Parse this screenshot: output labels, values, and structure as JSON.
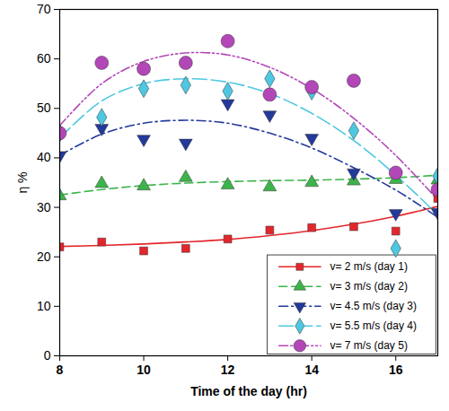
{
  "chart_data": {
    "type": "scatter",
    "x_label": "Time of the day (hr)",
    "y_label": "η %",
    "x": [
      8,
      9,
      10,
      11,
      12,
      13,
      14,
      15,
      16,
      17
    ],
    "xlim": [
      8,
      17
    ],
    "xticks": [
      8,
      10,
      12,
      14,
      16
    ],
    "ylim": [
      0,
      70
    ],
    "yticks": [
      0,
      10,
      20,
      30,
      40,
      50,
      60,
      70
    ],
    "grid": false,
    "legend": "bottom right",
    "series": [
      {
        "name": "v= 2 m/s (day 1)",
        "color": "#e3262b",
        "marker": "square",
        "line_style": "solid",
        "values": [
          22,
          23,
          21.2,
          21.7,
          23.6,
          25.4,
          25.9,
          26.1,
          25.2,
          31.8
        ],
        "fit": [
          22.1,
          22.3,
          22.6,
          23,
          23.5,
          24.3,
          25.3,
          26.6,
          28.2,
          30.2
        ]
      },
      {
        "name": "v= 3 m/s (day 2)",
        "color": "#3cb44b",
        "marker": "triangle",
        "line_style": "dashed",
        "values": [
          32.3,
          34.8,
          34.3,
          36,
          34.5,
          34.1,
          35,
          35.3,
          35.6,
          35.5
        ],
        "fit": [
          32.5,
          33.6,
          34.4,
          34.9,
          35.2,
          35.4,
          35.5,
          35.7,
          36,
          36.5
        ]
      },
      {
        "name": "v= 4.5 m/s (day 3)",
        "color": "#23399b",
        "marker": "triangle-down",
        "line_style": "dashdot",
        "values": [
          40.5,
          46,
          43.8,
          43,
          51,
          48.7,
          44,
          37,
          28.8,
          29
        ],
        "fit": [
          40.5,
          44.8,
          47,
          47.6,
          47,
          45,
          42,
          38,
          33.5,
          28
        ]
      },
      {
        "name": "v= 5.5 m/s (day 4)",
        "color": "#4dc8e0",
        "marker": "diamond",
        "line_style": "longdash",
        "values": [
          45,
          48.2,
          54,
          54.7,
          53.5,
          56,
          53.5,
          45.5,
          21.7,
          36.3
        ],
        "fit": [
          44,
          51.5,
          55,
          56,
          55.3,
          53,
          49,
          43.5,
          36.5,
          28.5
        ]
      },
      {
        "name": "v= 7 m/s (day 5)",
        "color": "#b347b8",
        "marker": "circle",
        "line_style": "dashdotdot",
        "values": [
          45,
          59.2,
          58,
          59.2,
          63.6,
          52.8,
          54.3,
          55.6,
          37,
          33.6
        ],
        "fit": [
          46.5,
          55,
          59.5,
          61.2,
          60.8,
          58.3,
          54,
          48,
          40.5,
          31.5
        ]
      }
    ]
  }
}
